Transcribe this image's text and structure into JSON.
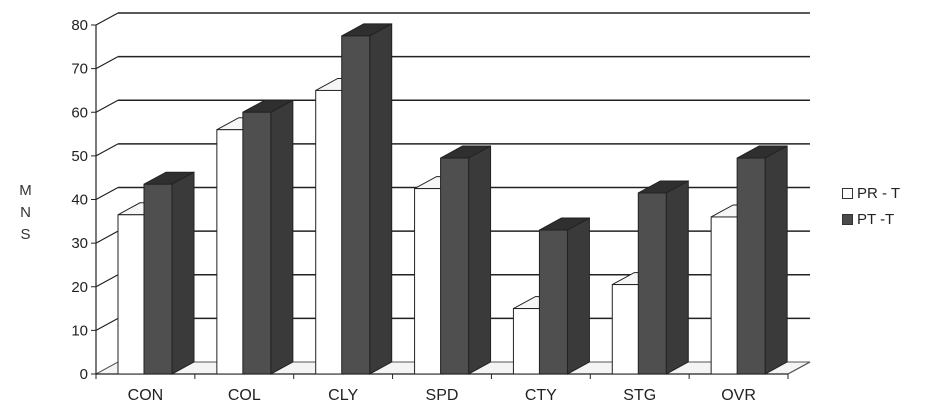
{
  "chart_data": {
    "type": "bar",
    "title": "",
    "xlabel": "",
    "ylabel": "M N S",
    "ylim": [
      0,
      80
    ],
    "yticks": [
      "0",
      "10",
      "20",
      "30",
      "40",
      "50",
      "60",
      "70",
      "80"
    ],
    "grid": true,
    "legend_position": "right",
    "categories": [
      "CON",
      "COL",
      "CLY",
      "SPD",
      "CTY",
      "STG",
      "OVR"
    ],
    "series": [
      {
        "name": "PR - T",
        "color": "#ffffff",
        "values": [
          36.5,
          56,
          65,
          42.5,
          15,
          20.5,
          36
        ]
      },
      {
        "name": "PT -T",
        "color": "#4a4a4a",
        "values": [
          43.5,
          60,
          77.5,
          49.5,
          33,
          41.5,
          49.5
        ]
      }
    ]
  }
}
